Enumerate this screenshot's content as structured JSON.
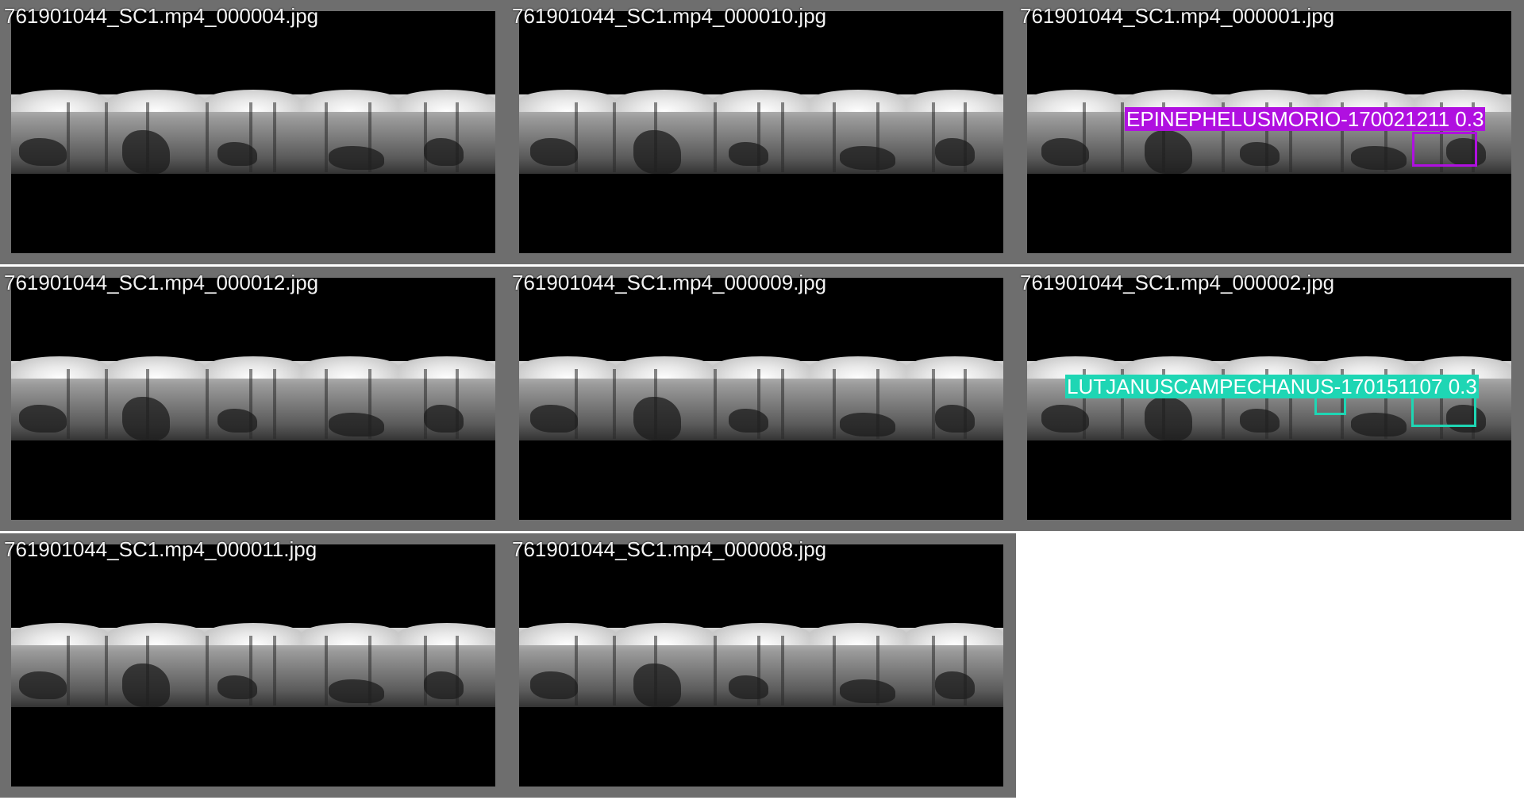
{
  "tiles": [
    {
      "filename": "761901044_SC1.mp4_000004.jpg"
    },
    {
      "filename": "761901044_SC1.mp4_000010.jpg"
    },
    {
      "filename": "761901044_SC1.mp4_000001.jpg",
      "detection": {
        "label": "EPINEPHELUSMORIO-170021211 0.3",
        "color": "#b010e0"
      }
    },
    {
      "filename": "761901044_SC1.mp4_000012.jpg"
    },
    {
      "filename": "761901044_SC1.mp4_000009.jpg"
    },
    {
      "filename": "761901044_SC1.mp4_000002.jpg",
      "detection": {
        "label": "LUTJANUSCAMPECHANUS-170151107 0.3",
        "color": "#1ed6b4"
      }
    },
    {
      "filename": "761901044_SC1.mp4_000011.jpg"
    },
    {
      "filename": "761901044_SC1.mp4_000008.jpg"
    }
  ]
}
